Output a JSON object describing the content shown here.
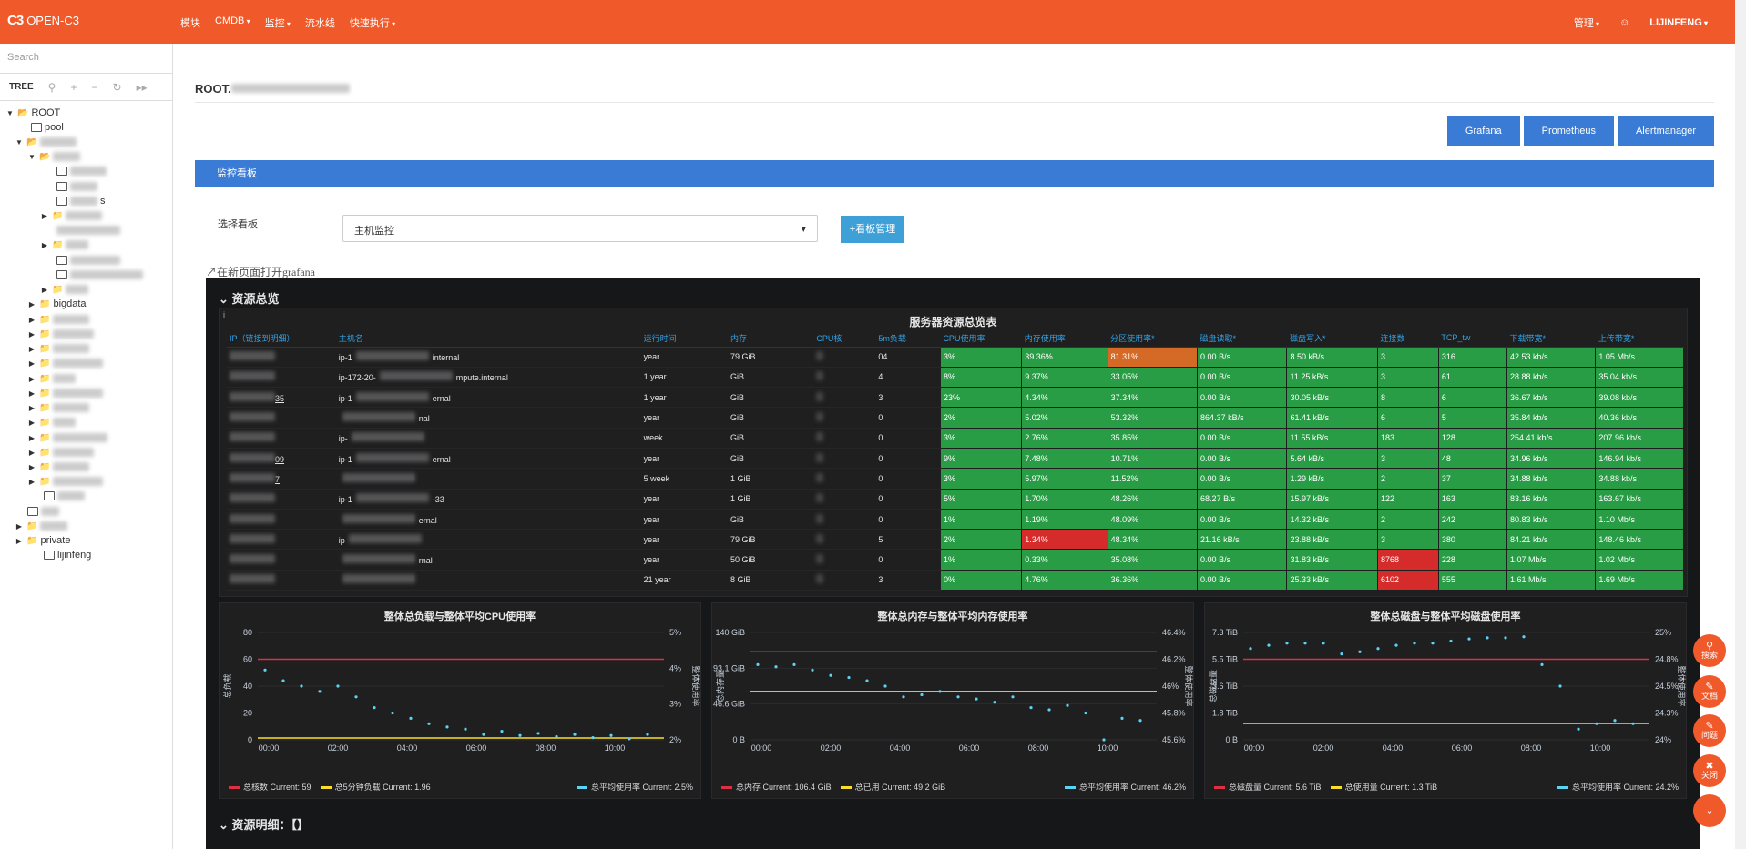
{
  "header": {
    "logo_mark": "C3",
    "logo_text": "OPEN-C3",
    "nav": [
      "模块",
      "CMDB",
      "监控",
      "流水线",
      "快速执行"
    ],
    "admin": "管理",
    "user": "LIJINFENG"
  },
  "sidebar": {
    "search_placeholder": "Search",
    "tree_label": "TREE",
    "root": "ROOT",
    "pool": "pool",
    "w_item": "s",
    "bigdata": "bigdata",
    "private": "private",
    "user_node": "lijinfeng"
  },
  "main": {
    "title": "ROOT.",
    "buttons": [
      "Grafana",
      "Prometheus",
      "Alertmanager"
    ],
    "panel_title": "监控看板",
    "select_label": "选择看板",
    "select_value": "主机监控",
    "manage_button": "+看板管理",
    "open_new": "在新页面打开grafana"
  },
  "dashboard": {
    "section1": "资源总览",
    "table_title": "服务器资源总览表",
    "columns": [
      "IP（链接到明细）",
      "主机名",
      "运行时间",
      "内存",
      "CPU核",
      "5m负载",
      "CPU使用率",
      "内存使用率",
      "分区使用率*",
      "磁盘读取*",
      "磁盘写入*",
      "连接数",
      "TCP_tw",
      "下载带宽*",
      "上传带宽*"
    ],
    "rows": [
      {
        "ip": "",
        "host": "ip-1",
        "host2": "internal",
        "uptime": "year",
        "mem": "79 GiB",
        "load": "04",
        "cpu": "3%",
        "memu": "39.36%",
        "part": "81.31%",
        "dr": "0.00 B/s",
        "dw": "8.50 kB/s",
        "conn": "3",
        "tw": "316",
        "down": "42.53 kb/s",
        "up": "1.05 Mb/s"
      },
      {
        "ip": "",
        "host": "ip-172-20-",
        "host2": "mpute.internal",
        "uptime": "1 year",
        "mem": "GiB",
        "load": "4",
        "cpu": "8%",
        "memu": "9.37%",
        "part": "33.05%",
        "dr": "0.00 B/s",
        "dw": "11.25 kB/s",
        "conn": "3",
        "tw": "61",
        "down": "28.88 kb/s",
        "up": "35.04 kb/s"
      },
      {
        "ip": "35",
        "host": "ip-1",
        "host2": "ernal",
        "uptime": "1 year",
        "mem": "GiB",
        "load": "3",
        "cpu": "23%",
        "memu": "4.34%",
        "part": "37.34%",
        "dr": "0.00 B/s",
        "dw": "30.05 kB/s",
        "conn": "8",
        "tw": "6",
        "down": "36.67 kb/s",
        "up": "39.08 kb/s"
      },
      {
        "ip": "",
        "host": "",
        "host2": "nal",
        "uptime": "year",
        "mem": "GiB",
        "load": "0",
        "cpu": "2%",
        "memu": "5.02%",
        "part": "53.32%",
        "dr": "864.37 kB/s",
        "dw": "61.41 kB/s",
        "conn": "6",
        "tw": "5",
        "down": "35.84 kb/s",
        "up": "40.36 kb/s"
      },
      {
        "ip": "",
        "host": "ip-",
        "host2": "",
        "uptime": "week",
        "mem": "GiB",
        "load": "0",
        "cpu": "3%",
        "memu": "2.76%",
        "part": "35.85%",
        "dr": "0.00 B/s",
        "dw": "11.55 kB/s",
        "conn": "183",
        "tw": "128",
        "down": "254.41 kb/s",
        "up": "207.96 kb/s"
      },
      {
        "ip": "09",
        "host": "ip-1",
        "host2": "ernal",
        "uptime": "year",
        "mem": "GiB",
        "load": "0",
        "cpu": "9%",
        "memu": "7.48%",
        "part": "10.71%",
        "dr": "0.00 B/s",
        "dw": "5.64 kB/s",
        "conn": "3",
        "tw": "48",
        "down": "34.96 kb/s",
        "up": "146.94 kb/s"
      },
      {
        "ip": "7",
        "host": "",
        "host2": "",
        "uptime": "5 week",
        "mem": "1 GiB",
        "load": "0",
        "cpu": "3%",
        "memu": "5.97%",
        "part": "11.52%",
        "dr": "0.00 B/s",
        "dw": "1.29 kB/s",
        "conn": "2",
        "tw": "37",
        "down": "34.88 kb/s",
        "up": "34.88 kb/s"
      },
      {
        "ip": "",
        "host": "ip-1",
        "host2": "-33",
        "uptime": "year",
        "mem": "1 GiB",
        "load": "0",
        "cpu": "5%",
        "memu": "1.70%",
        "part": "48.26%",
        "dr": "68.27 B/s",
        "dw": "15.97 kB/s",
        "conn": "122",
        "tw": "163",
        "down": "83.16 kb/s",
        "up": "163.67 kb/s"
      },
      {
        "ip": "",
        "host": "",
        "host2": "ernal",
        "uptime": "year",
        "mem": "GiB",
        "load": "0",
        "cpu": "1%",
        "memu": "1.19%",
        "part": "48.09%",
        "dr": "0.00 B/s",
        "dw": "14.32 kB/s",
        "conn": "2",
        "tw": "242",
        "down": "80.83 kb/s",
        "up": "1.10 Mb/s"
      },
      {
        "ip": "",
        "host": "ip",
        "host2": "",
        "uptime": "year",
        "mem": "79 GiB",
        "load": "5",
        "cpu": "2%",
        "memu": "1.34%",
        "part": "48.34%",
        "dr": "21.16 kB/s",
        "dw": "23.88 kB/s",
        "conn": "3",
        "tw": "380",
        "down": "84.21 kb/s",
        "up": "148.46 kb/s"
      },
      {
        "ip": "",
        "host": "",
        "host2": "rnal",
        "uptime": "year",
        "mem": "50 GiB",
        "load": "0",
        "cpu": "1%",
        "memu": "0.33%",
        "part": "35.08%",
        "dr": "0.00 B/s",
        "dw": "31.83 kB/s",
        "conn": "8768",
        "tw": "228",
        "down": "1.07 Mb/s",
        "up": "1.02 Mb/s"
      },
      {
        "ip": "",
        "host": "",
        "host2": "",
        "uptime": "21 year",
        "mem": "8 GiB",
        "load": "3",
        "cpu": "0%",
        "memu": "4.76%",
        "part": "36.36%",
        "dr": "0.00 B/s",
        "dw": "25.33 kB/s",
        "conn": "6102",
        "tw": "555",
        "down": "1.61 Mb/s",
        "up": "1.69 Mb/s"
      }
    ],
    "charts": [
      {
        "title": "整体总负载与整体平均CPU使用率",
        "ylabel_left": "总负载",
        "ylabel_right": "整体使用率",
        "left_ticks": [
          "80",
          "60",
          "40",
          "20",
          "0"
        ],
        "right_ticks": [
          "5%",
          "4%",
          "3%",
          "2%"
        ],
        "x_ticks": [
          "00:00",
          "02:00",
          "04:00",
          "06:00",
          "08:00",
          "10:00"
        ],
        "legend": [
          {
            "name": "总核数",
            "current": "Current: 59"
          },
          {
            "name": "总5分钟负载",
            "current": "Current: 1.96"
          },
          {
            "name": "总平均使用率",
            "current": "Current: 2.5%"
          }
        ]
      },
      {
        "title": "整体总内存与整体平均内存使用率",
        "ylabel_left": "总内存量",
        "ylabel_right": "整体使用率",
        "left_ticks": [
          "140 GiB",
          "93.1 GiB",
          "46.6 GiB",
          "0 B"
        ],
        "right_ticks": [
          "46.4%",
          "46.2%",
          "46%",
          "45.8%",
          "45.6%"
        ],
        "x_ticks": [
          "00:00",
          "02:00",
          "04:00",
          "06:00",
          "08:00",
          "10:00"
        ],
        "legend": [
          {
            "name": "总内存",
            "current": "Current: 106.4 GiB"
          },
          {
            "name": "总已用",
            "current": "Current: 49.2 GiB"
          },
          {
            "name": "总平均使用率",
            "current": "Current: 46.2%"
          }
        ]
      },
      {
        "title": "整体总磁盘与整体平均磁盘使用率",
        "ylabel_left": "总磁盘量",
        "ylabel_right": "整体使用率",
        "left_ticks": [
          "7.3 TiB",
          "5.5 TiB",
          "3.6 TiB",
          "1.8 TiB",
          "0 B"
        ],
        "right_ticks": [
          "25%",
          "24.8%",
          "24.5%",
          "24.3%",
          "24%"
        ],
        "x_ticks": [
          "00:00",
          "02:00",
          "04:00",
          "06:00",
          "08:00",
          "10:00"
        ],
        "legend": [
          {
            "name": "总磁盘量",
            "current": "Current: 5.6 TiB"
          },
          {
            "name": "总使用量",
            "current": "Current: 1.3 TiB"
          },
          {
            "name": "总平均使用率",
            "current": "Current: 24.2%"
          }
        ]
      }
    ],
    "section2": "资源明细：【】"
  },
  "fabs": [
    "搜索",
    "文档",
    "问题",
    "关闭"
  ],
  "colors": {
    "brand": "#f05a2b",
    "primary": "#3a7bd5",
    "green": "#299c46",
    "orange": "#d46a25",
    "red": "#d62b2b"
  }
}
